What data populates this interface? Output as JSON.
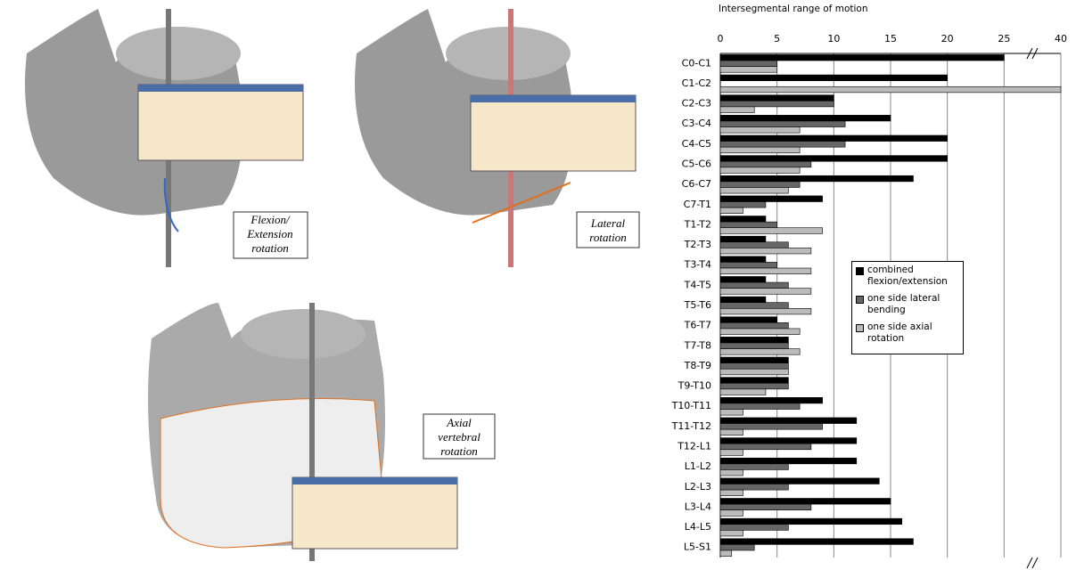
{
  "panels": [
    {
      "label_lines": [
        "Flexion/",
        "Extension",
        "rotation"
      ]
    },
    {
      "label_lines": [
        "Lateral",
        "rotation"
      ]
    },
    {
      "label_lines": [
        "Axial",
        "vertebral",
        "rotation"
      ]
    }
  ],
  "chart_data": {
    "type": "barh",
    "title": "Intersegmental range of motion",
    "categories": [
      "C0-C1",
      "C1-C2",
      "C2-C3",
      "C3-C4",
      "C4-C5",
      "C5-C6",
      "C6-C7",
      "C7-T1",
      "T1-T2",
      "T2-T3",
      "T3-T4",
      "T4-T5",
      "T5-T6",
      "T6-T7",
      "T7-T8",
      "T8-T9",
      "T9-T10",
      "T10-T11",
      "T11-T12",
      "T12-L1",
      "L1-L2",
      "L2-L3",
      "L3-L4",
      "L4-L5",
      "L5-S1"
    ],
    "series": [
      {
        "name": "combined flexion/extension",
        "color": "#000000",
        "values": [
          25,
          20,
          10,
          15,
          20,
          20,
          17,
          9,
          4,
          4,
          4,
          4,
          4,
          5,
          6,
          6,
          6,
          9,
          12,
          12,
          12,
          14,
          15,
          16,
          17
        ]
      },
      {
        "name": "one side lateral bending",
        "color": "#666666",
        "values": [
          5,
          null,
          10,
          11,
          11,
          8,
          7,
          4,
          5,
          6,
          5,
          6,
          6,
          6,
          6,
          6,
          6,
          7,
          9,
          8,
          6,
          6,
          8,
          6,
          3
        ]
      },
      {
        "name": "one side axial rotation",
        "color": "#bbbbbb",
        "values": [
          5,
          40,
          3,
          7,
          7,
          7,
          6,
          2,
          9,
          8,
          8,
          8,
          8,
          7,
          7,
          6,
          4,
          2,
          2,
          2,
          2,
          2,
          2,
          2,
          1
        ]
      }
    ],
    "xlim": [
      0,
      40
    ],
    "xticks": [
      0,
      5,
      10,
      15,
      20,
      25,
      40
    ],
    "axis_break": true,
    "grid": true,
    "legend": "center right"
  }
}
